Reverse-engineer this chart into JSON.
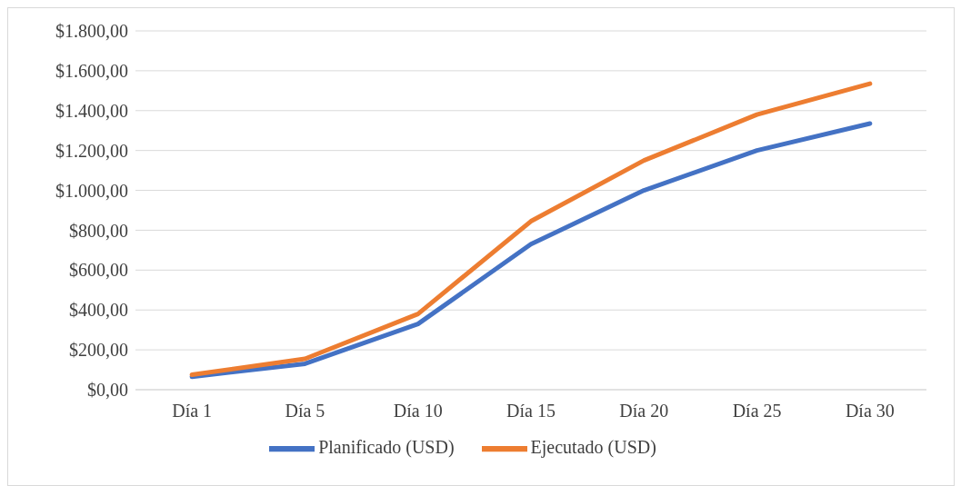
{
  "chart_data": {
    "type": "line",
    "categories": [
      "Día 1",
      "Día 5",
      "Día 10",
      "Día 15",
      "Día 20",
      "Día 25",
      "Día 30"
    ],
    "series": [
      {
        "name": "Planificado (USD)",
        "color": "#4472c4",
        "values": [
          65,
          130,
          330,
          730,
          1000,
          1200,
          1335
        ]
      },
      {
        "name": "Ejecutado (USD)",
        "color": "#ed7d31",
        "values": [
          75,
          155,
          380,
          845,
          1150,
          1380,
          1535
        ]
      }
    ],
    "ylim": [
      0,
      1800
    ],
    "yticks": [
      {
        "value": 0,
        "label": "$0,00"
      },
      {
        "value": 200,
        "label": "$200,00"
      },
      {
        "value": 400,
        "label": "$400,00"
      },
      {
        "value": 600,
        "label": "$600,00"
      },
      {
        "value": 800,
        "label": "$800,00"
      },
      {
        "value": 1000,
        "label": "$1.000,00"
      },
      {
        "value": 1200,
        "label": "$1.200,00"
      },
      {
        "value": 1400,
        "label": "$1.400,00"
      },
      {
        "value": 1600,
        "label": "$1.600,00"
      },
      {
        "value": 1800,
        "label": "$1.800,00"
      }
    ],
    "grid": "y",
    "legend": "bottom",
    "marker": "none",
    "line_style": "solid"
  }
}
